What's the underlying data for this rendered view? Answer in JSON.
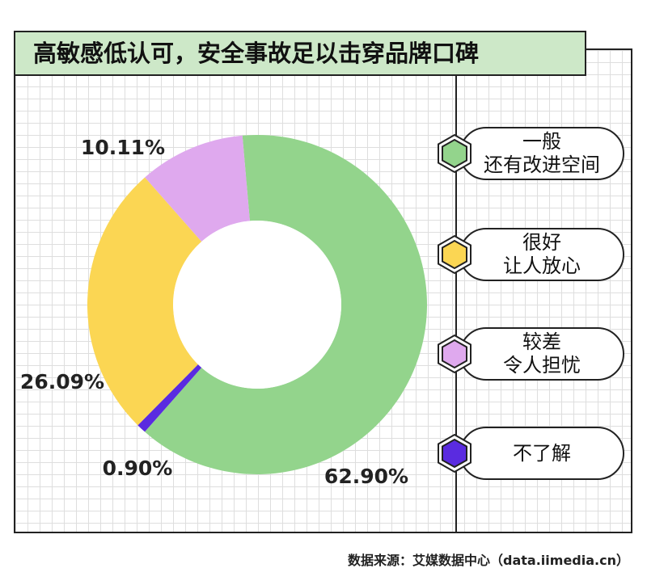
{
  "title": "高敏感低认可，安全事故足以击穿品牌口碑",
  "chart_data": {
    "type": "pie",
    "donut": true,
    "categories": [
      "一般 还有改进空间",
      "不了解",
      "很好 让人放心",
      "较差 令人担忧"
    ],
    "values": [
      62.9,
      0.9,
      26.09,
      10.11
    ],
    "value_labels": [
      "62.90%",
      "0.90%",
      "26.09%",
      "10.11%"
    ],
    "colors": [
      "#93d48c",
      "#5a2be0",
      "#fbd653",
      "#dfa9ee"
    ],
    "start_angle_deg": -5,
    "direction": "clockwise",
    "legend_placement": "right"
  },
  "legend": [
    {
      "line1": "一般",
      "line2": "还有改进空间",
      "color": "#93d48c"
    },
    {
      "line1": "很好",
      "line2": "让人放心",
      "color": "#fbd653"
    },
    {
      "line1": "较差",
      "line2": "令人担忧",
      "color": "#dfa9ee"
    },
    {
      "line1": "不了解",
      "line2": "",
      "color": "#5a2be0"
    }
  ],
  "source": "数据来源：艾媒数据中心（data.iimedia.cn）"
}
